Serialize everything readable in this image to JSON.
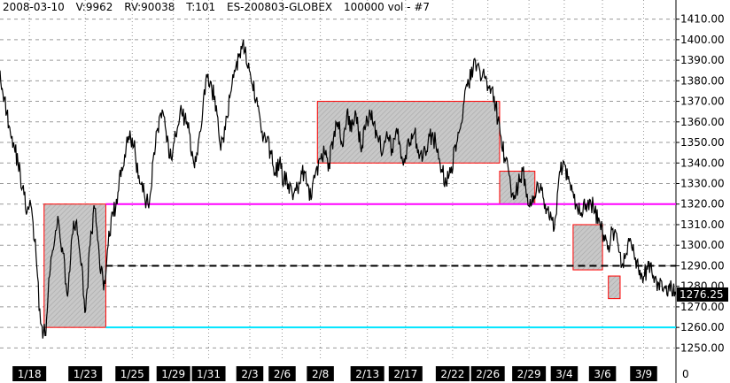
{
  "header": {
    "date": "2008-03-10",
    "volume": "V:9962",
    "rv": "RV:90038",
    "ticks": "T:101",
    "symbol": "ES-200803-GLOBEX",
    "bar_type": "100000 vol - #7"
  },
  "chart_data": {
    "type": "line",
    "title": "",
    "ylim": [
      1245,
      1415
    ],
    "y_ticks": [
      "1250.00",
      "1260.00",
      "1270.00",
      "1280.00",
      "1290.00",
      "1300.00",
      "1310.00",
      "1320.00",
      "1330.00",
      "1340.00",
      "1350.00",
      "1360.00",
      "1370.00",
      "1380.00",
      "1390.00",
      "1400.00",
      "1410.00"
    ],
    "y_tick_values": [
      1250,
      1260,
      1270,
      1280,
      1290,
      1300,
      1310,
      1320,
      1330,
      1340,
      1350,
      1360,
      1370,
      1380,
      1390,
      1400,
      1410
    ],
    "x_ticks": [
      "1/18",
      "1/23",
      "1/25",
      "1/29",
      "1/31",
      "2/3",
      "2/6",
      "2/8",
      "2/13",
      "2/17",
      "2/22",
      "2/26",
      "2/29",
      "3/4",
      "3/6",
      "3/9"
    ],
    "x_tick_index": [
      10,
      29,
      45,
      59,
      71,
      85,
      96,
      109,
      125,
      138,
      154,
      166,
      180,
      192,
      205,
      219
    ],
    "x_range": [
      0,
      230
    ],
    "x_right_label": "0",
    "grid": true,
    "last_price": "1276.25",
    "series": [
      {
        "values": [
          1385,
          1372,
          1358,
          1350,
          1340,
          1328,
          1316,
          1318,
          1295,
          1262,
          1256,
          1285,
          1300,
          1312,
          1296,
          1275,
          1305,
          1312,
          1290,
          1268,
          1300,
          1318,
          1296,
          1278,
          1300,
          1316,
          1320,
          1338,
          1348,
          1352,
          1345,
          1330,
          1325,
          1318,
          1342,
          1357,
          1366,
          1350,
          1342,
          1353,
          1366,
          1362,
          1355,
          1340,
          1350,
          1366,
          1382,
          1376,
          1368,
          1346,
          1356,
          1372,
          1385,
          1392,
          1400,
          1386,
          1378,
          1372,
          1355,
          1350,
          1346,
          1335,
          1340,
          1332,
          1330,
          1322,
          1328,
          1335,
          1330,
          1322,
          1335,
          1342,
          1345,
          1340,
          1352,
          1360,
          1348,
          1365,
          1355,
          1364,
          1348,
          1356,
          1366,
          1360,
          1350,
          1346,
          1352,
          1347,
          1357,
          1342,
          1344,
          1350,
          1355,
          1342,
          1346,
          1350,
          1355,
          1345,
          1337,
          1330,
          1335,
          1349,
          1356,
          1370,
          1378,
          1386,
          1388,
          1382,
          1380,
          1376,
          1368,
          1354,
          1342,
          1334,
          1322,
          1329,
          1336,
          1325,
          1320,
          1326,
          1330,
          1320,
          1312,
          1308,
          1332,
          1341,
          1332,
          1326,
          1320,
          1316,
          1320,
          1322,
          1316,
          1312,
          1305,
          1300,
          1308,
          1302,
          1290,
          1296,
          1302,
          1294,
          1288,
          1285,
          1292,
          1285,
          1282,
          1278,
          1276,
          1280,
          1276
        ]
      }
    ],
    "boxes": [
      {
        "x0": 15,
        "x1": 36,
        "y_low": 1260,
        "y_high": 1320
      },
      {
        "x0": 108,
        "x1": 170,
        "y_low": 1340,
        "y_high": 1370
      },
      {
        "x0": 170,
        "x1": 182,
        "y_low": 1320,
        "y_high": 1336
      },
      {
        "x0": 195,
        "x1": 205,
        "y_low": 1288,
        "y_high": 1310
      },
      {
        "x0": 207,
        "x1": 211,
        "y_low": 1274,
        "y_high": 1285
      }
    ],
    "h_lines": [
      {
        "y": 1320,
        "x0": 36,
        "color": "#ff00ff",
        "style": "solid"
      },
      {
        "y": 1290,
        "x0": 36,
        "color": "#000000",
        "style": "dashed"
      },
      {
        "y": 1260,
        "x0": 36,
        "color": "#00e5ff",
        "style": "solid"
      }
    ],
    "colors": {
      "price": "#000000",
      "box_fill": "#c8c8c8",
      "box_border": "#ff0000",
      "grid": "#9a9a9a",
      "date_bar": "#000000",
      "date_text": "#ffffff",
      "last_price_bg": "#000000",
      "last_price_text": "#ffffff"
    }
  }
}
